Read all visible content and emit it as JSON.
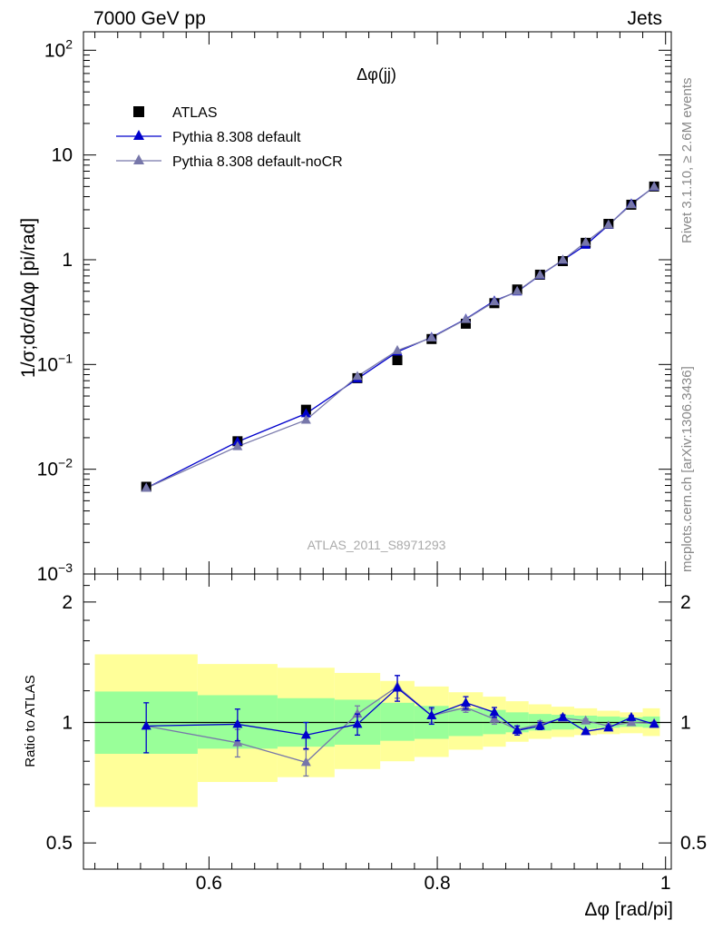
{
  "header": {
    "energy_label": "7000 GeV pp",
    "process_label": "Jets"
  },
  "side_labels": {
    "rivet": "Rivet 3.1.10, ≥ 2.6M events",
    "source": "mcplots.cern.ch [arXiv:1306.3436]"
  },
  "watermark": "ATLAS_2011_S8971293",
  "chart_data": [
    {
      "type": "scatter",
      "title": "Δφ(jj)",
      "ylabel": "1/σ;dσ/dΔφ [pi/rad]",
      "yscale": "log",
      "ylim": [
        0.001,
        150
      ],
      "xlim": [
        0.49,
        1.005
      ],
      "y_tick_labels": [
        {
          "base": "10",
          "exp": "2"
        },
        {
          "base": "10",
          "exp": ""
        },
        {
          "base": "1",
          "exp": ""
        },
        {
          "base": "10",
          "exp": "−1"
        },
        {
          "base": "10",
          "exp": "−2"
        },
        {
          "base": "10",
          "exp": "−3"
        }
      ],
      "legend_position": "top-left",
      "series": [
        {
          "name": "ATLAS",
          "color": "#000000",
          "marker": "square",
          "x": [
            0.545,
            0.625,
            0.685,
            0.73,
            0.765,
            0.795,
            0.825,
            0.85,
            0.87,
            0.89,
            0.91,
            0.93,
            0.95,
            0.97,
            0.99
          ],
          "y": [
            0.0068,
            0.0185,
            0.037,
            0.074,
            0.11,
            0.175,
            0.245,
            0.385,
            0.52,
            0.72,
            0.97,
            1.45,
            2.2,
            3.35,
            5.0
          ]
        },
        {
          "name": "Pythia 8.308 default",
          "color": "#0000cc",
          "marker": "triangle",
          "x": [
            0.545,
            0.625,
            0.685,
            0.73,
            0.765,
            0.795,
            0.825,
            0.85,
            0.87,
            0.89,
            0.91,
            0.93,
            0.95,
            0.97,
            0.99
          ],
          "y": [
            0.0066,
            0.0183,
            0.034,
            0.073,
            0.132,
            0.182,
            0.272,
            0.405,
            0.495,
            0.71,
            0.99,
            1.38,
            2.14,
            3.42,
            4.95
          ]
        },
        {
          "name": "Pythia 8.308 default-noCR",
          "color": "#7777aa",
          "marker": "triangle",
          "x": [
            0.545,
            0.625,
            0.685,
            0.73,
            0.765,
            0.795,
            0.825,
            0.85,
            0.87,
            0.89,
            0.91,
            0.93,
            0.95,
            0.97,
            0.99
          ],
          "y": [
            0.0066,
            0.0165,
            0.0295,
            0.077,
            0.136,
            0.18,
            0.27,
            0.398,
            0.5,
            0.715,
            0.995,
            1.47,
            2.15,
            3.36,
            4.98
          ]
        }
      ]
    },
    {
      "type": "scatter",
      "ylabel": "Ratio to ATLAS",
      "xlabel": "Δφ [rad/pi]",
      "yscale": "log",
      "ylim": [
        0.43,
        2.35
      ],
      "xlim": [
        0.49,
        1.005
      ],
      "x_ticks": [
        0.6,
        0.8,
        1
      ],
      "x_tick_labels": [
        "0.6",
        "0.8",
        "1"
      ],
      "y_ticks": [
        0.5,
        1,
        2
      ],
      "y_tick_labels": [
        "0.5",
        "1",
        "2"
      ],
      "bins": [
        {
          "lo": 0.5,
          "hi": 0.59,
          "inner": [
            0.835,
            1.195
          ],
          "outer": [
            0.615,
            1.48
          ]
        },
        {
          "lo": 0.59,
          "hi": 0.66,
          "inner": [
            0.86,
            1.17
          ],
          "outer": [
            0.71,
            1.4
          ]
        },
        {
          "lo": 0.66,
          "hi": 0.71,
          "inner": [
            0.87,
            1.15
          ],
          "outer": [
            0.73,
            1.37
          ]
        },
        {
          "lo": 0.71,
          "hi": 0.75,
          "inner": [
            0.88,
            1.14
          ],
          "outer": [
            0.765,
            1.33
          ]
        },
        {
          "lo": 0.75,
          "hi": 0.78,
          "inner": [
            0.9,
            1.12
          ],
          "outer": [
            0.8,
            1.27
          ]
        },
        {
          "lo": 0.78,
          "hi": 0.81,
          "inner": [
            0.91,
            1.1
          ],
          "outer": [
            0.82,
            1.23
          ]
        },
        {
          "lo": 0.81,
          "hi": 0.84,
          "inner": [
            0.925,
            1.085
          ],
          "outer": [
            0.855,
            1.19
          ]
        },
        {
          "lo": 0.84,
          "hi": 0.86,
          "inner": [
            0.935,
            1.075
          ],
          "outer": [
            0.87,
            1.16
          ]
        },
        {
          "lo": 0.86,
          "hi": 0.88,
          "inner": [
            0.945,
            1.06
          ],
          "outer": [
            0.895,
            1.13
          ]
        },
        {
          "lo": 0.88,
          "hi": 0.9,
          "inner": [
            0.955,
            1.05
          ],
          "outer": [
            0.91,
            1.11
          ]
        },
        {
          "lo": 0.9,
          "hi": 0.92,
          "inner": [
            0.96,
            1.045
          ],
          "outer": [
            0.92,
            1.095
          ]
        },
        {
          "lo": 0.92,
          "hi": 0.94,
          "inner": [
            0.965,
            1.04
          ],
          "outer": [
            0.93,
            1.085
          ]
        },
        {
          "lo": 0.94,
          "hi": 0.96,
          "inner": [
            0.97,
            1.035
          ],
          "outer": [
            0.935,
            1.07
          ]
        },
        {
          "lo": 0.96,
          "hi": 0.98,
          "inner": [
            0.975,
            1.03
          ],
          "outer": [
            0.94,
            1.06
          ]
        },
        {
          "lo": 0.98,
          "hi": 0.995,
          "inner": [
            0.97,
            1.035
          ],
          "outer": [
            0.925,
            1.085
          ]
        }
      ],
      "series": [
        {
          "name": "Pythia 8.308 default",
          "color": "#0000cc",
          "x": [
            0.545,
            0.625,
            0.685,
            0.73,
            0.765,
            0.795,
            0.825,
            0.85,
            0.87,
            0.89,
            0.91,
            0.93,
            0.95,
            0.97,
            0.99
          ],
          "y": [
            0.98,
            0.99,
            0.93,
            0.99,
            1.22,
            1.04,
            1.12,
            1.06,
            0.955,
            0.98,
            1.03,
            0.95,
            0.97,
            1.03,
            0.99
          ],
          "err": [
            0.14,
            0.09,
            0.07,
            0.06,
            0.09,
            0.05,
            0.04,
            0.03,
            0.025,
            0.02,
            0.015,
            0.01,
            0.01,
            0.01,
            0.01
          ]
        },
        {
          "name": "Pythia 8.308 default-noCR",
          "color": "#7777aa",
          "x": [
            0.545,
            0.625,
            0.685,
            0.73,
            0.765,
            0.795,
            0.825,
            0.85,
            0.87,
            0.89,
            0.91,
            0.93,
            0.95,
            0.97,
            0.99
          ],
          "y": [
            0.98,
            0.89,
            0.795,
            1.05,
            1.23,
            1.04,
            1.09,
            1.02,
            0.96,
            0.99,
            1.025,
            1.01,
            0.98,
            1.0,
            0.995
          ],
          "err": [
            0.0,
            0.07,
            0.06,
            0.05,
            0.08,
            0.04,
            0.03,
            0.03,
            0.02,
            0.02,
            0.015,
            0.01,
            0.01,
            0.01,
            0.01
          ]
        }
      ]
    }
  ]
}
